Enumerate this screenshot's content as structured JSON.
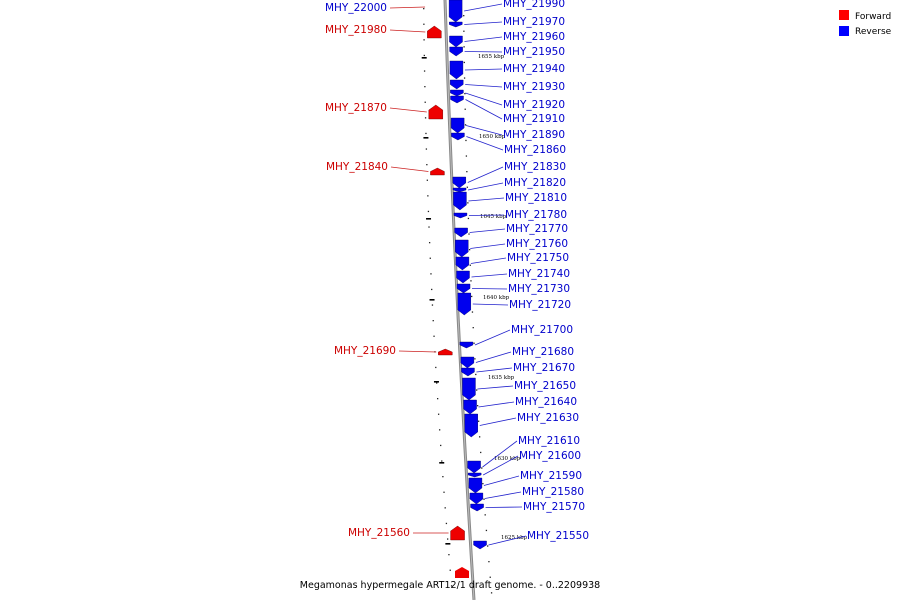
{
  "caption": "Megamonas hypermegale ART12/1 draft genome. - 0..2209938",
  "legend": [
    {
      "label": "Forward",
      "color": "#ff0000"
    },
    {
      "label": "Reverse",
      "color": "#0000ff"
    }
  ],
  "kbp_markers": [
    "1655 kbp",
    "1650 kbp",
    "1645 kbp",
    "1640 kbp",
    "1635 kbp",
    "1630 kbp",
    "1625 kbp"
  ],
  "forward_genes": [
    "MHY_22000",
    "MHY_21980",
    "MHY_21870",
    "MHY_21840",
    "MHY_21690",
    "MHY_21560"
  ],
  "reverse_genes": [
    "MHY_21990",
    "MHY_21970",
    "MHY_21960",
    "MHY_21950",
    "MHY_21940",
    "MHY_21930",
    "MHY_21920",
    "MHY_21910",
    "MHY_21890",
    "MHY_21860",
    "MHY_21830",
    "MHY_21820",
    "MHY_21810",
    "MHY_21780",
    "MHY_21770",
    "MHY_21760",
    "MHY_21750",
    "MHY_21740",
    "MHY_21730",
    "MHY_21720",
    "MHY_21700",
    "MHY_21680",
    "MHY_21670",
    "MHY_21650",
    "MHY_21640",
    "MHY_21630",
    "MHY_21610",
    "MHY_21600",
    "MHY_21590",
    "MHY_21580",
    "MHY_21570",
    "MHY_21550"
  ]
}
